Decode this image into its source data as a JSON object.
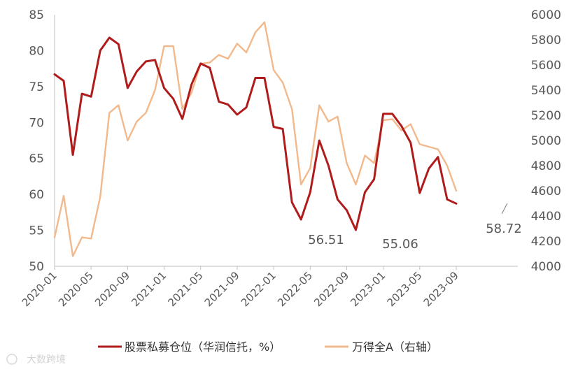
{
  "chart_data": {
    "type": "line",
    "title": "",
    "xlabel": "",
    "x_ticks": [
      "2020-01",
      "2020-05",
      "2020-09",
      "2021-01",
      "2021-05",
      "2021-09",
      "2022-01",
      "2022-05",
      "2022-09",
      "2023-01",
      "2023-05",
      "2023-09"
    ],
    "y_left": {
      "range": [
        50,
        85
      ],
      "ticks": [
        "50",
        "55",
        "60",
        "65",
        "70",
        "75",
        "80",
        "85"
      ]
    },
    "y_right": {
      "range": [
        4000,
        6000
      ],
      "ticks": [
        "4000",
        "4200",
        "4400",
        "4600",
        "4800",
        "5000",
        "5200",
        "5400",
        "5600",
        "5800",
        "6000"
      ]
    },
    "legend_position": "bottom",
    "grid": false,
    "series": [
      {
        "name": "股票私募仓位（华润信托，%）",
        "axis": "left",
        "color": "#b01c1c",
        "x": [
          "2020-01",
          "2020-02",
          "2020-03",
          "2020-04",
          "2020-05",
          "2020-06",
          "2020-07",
          "2020-08",
          "2020-09",
          "2020-10",
          "2020-11",
          "2020-12",
          "2021-01",
          "2021-02",
          "2021-03",
          "2021-04",
          "2021-05",
          "2021-06",
          "2021-07",
          "2021-08",
          "2021-09",
          "2021-10",
          "2021-11",
          "2021-12",
          "2022-01",
          "2022-02",
          "2022-03",
          "2022-04",
          "2022-05",
          "2022-06",
          "2022-07",
          "2022-08",
          "2022-09",
          "2022-10",
          "2022-11",
          "2022-12",
          "2023-01",
          "2023-02",
          "2023-03",
          "2023-04",
          "2023-05",
          "2023-06",
          "2023-07",
          "2023-08",
          "2023-09"
        ],
        "values": [
          76.7,
          75.8,
          65.5,
          74.0,
          73.6,
          80.0,
          81.8,
          80.9,
          74.8,
          77.1,
          78.5,
          78.7,
          74.8,
          73.3,
          70.5,
          75.3,
          78.2,
          77.6,
          72.9,
          72.5,
          71.1,
          72.1,
          76.2,
          76.2,
          69.4,
          69.1,
          58.9,
          56.51,
          60.3,
          67.5,
          64.0,
          59.3,
          57.8,
          55.06,
          60.3,
          62.1,
          71.2,
          71.2,
          69.5,
          67.2,
          60.2,
          63.6,
          65.2,
          59.3,
          58.72
        ]
      },
      {
        "name": "万得全A（右轴）",
        "axis": "right",
        "color": "#f2b98c",
        "x": [
          "2020-01",
          "2020-02",
          "2020-03",
          "2020-04",
          "2020-05",
          "2020-06",
          "2020-07",
          "2020-08",
          "2020-09",
          "2020-10",
          "2020-11",
          "2020-12",
          "2021-01",
          "2021-02",
          "2021-03",
          "2021-04",
          "2021-05",
          "2021-06",
          "2021-07",
          "2021-08",
          "2021-09",
          "2021-10",
          "2021-11",
          "2021-12",
          "2022-01",
          "2022-02",
          "2022-03",
          "2022-04",
          "2022-05",
          "2022-06",
          "2022-07",
          "2022-08",
          "2022-09",
          "2022-10",
          "2022-11",
          "2022-12",
          "2023-01",
          "2023-02",
          "2023-03",
          "2023-04",
          "2023-05",
          "2023-06",
          "2023-07",
          "2023-08",
          "2023-09"
        ],
        "values": [
          4230,
          4560,
          4080,
          4230,
          4220,
          4550,
          5220,
          5280,
          5000,
          5150,
          5220,
          5400,
          5750,
          5750,
          5250,
          5380,
          5610,
          5620,
          5680,
          5650,
          5770,
          5700,
          5860,
          5940,
          5560,
          5460,
          5250,
          4650,
          4780,
          5280,
          5150,
          5190,
          4820,
          4650,
          4880,
          4820,
          5160,
          5170,
          5080,
          5130,
          4970,
          4950,
          4930,
          4800,
          4600
        ]
      }
    ],
    "annotations": [
      "56.51",
      "55.06",
      "58.72"
    ]
  },
  "watermark": "大数跨境"
}
